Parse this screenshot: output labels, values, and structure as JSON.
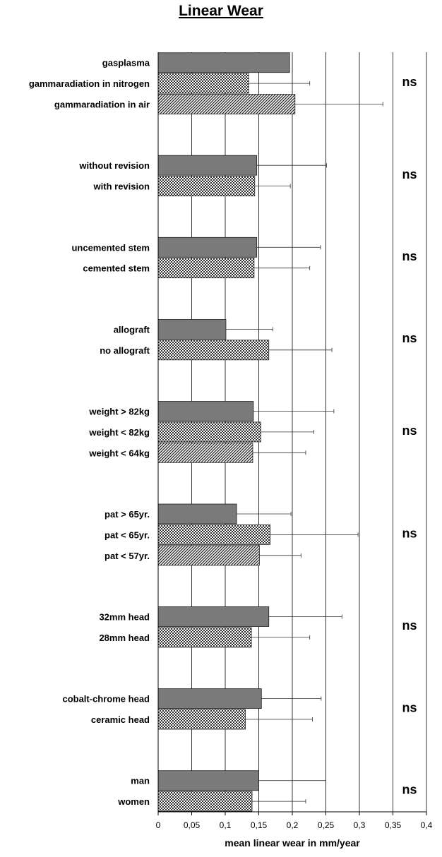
{
  "chart_data": {
    "type": "bar",
    "orientation": "horizontal",
    "title": "Linear Wear",
    "xlabel": "mean linear wear in mm/year",
    "ylabel": "",
    "xlim": [
      0,
      0.4
    ],
    "x_ticks": [
      "0",
      "0,05",
      "0,1",
      "0,15",
      "0,2",
      "0,25",
      "0,3",
      "0,35",
      "0,4"
    ],
    "x_tick_values": [
      0,
      0.05,
      0.1,
      0.15,
      0.2,
      0.25,
      0.3,
      0.35,
      0.4
    ],
    "grid": "vertical",
    "fill_patterns": {
      "solid": "#7a7a7a",
      "checker": "checker",
      "diagonal": "diagonal"
    },
    "groups": [
      {
        "significance": "ns",
        "bars": [
          {
            "label": "gasplasma",
            "value": 0.196,
            "error_high": 0.196,
            "fill": "solid"
          },
          {
            "label": "gammaradiation in nitrogen",
            "value": 0.135,
            "error_high": 0.226,
            "fill": "checker"
          },
          {
            "label": "gammaradiation in air",
            "value": 0.204,
            "error_high": 0.335,
            "fill": "diagonal"
          }
        ]
      },
      {
        "significance": "ns",
        "bars": [
          {
            "label": "without revision",
            "value": 0.147,
            "error_high": 0.251,
            "fill": "solid"
          },
          {
            "label": "with revision",
            "value": 0.144,
            "error_high": 0.197,
            "fill": "checker"
          }
        ]
      },
      {
        "significance": "ns",
        "bars": [
          {
            "label": "uncemented stem",
            "value": 0.147,
            "error_high": 0.242,
            "fill": "solid"
          },
          {
            "label": "cemented stem",
            "value": 0.143,
            "error_high": 0.226,
            "fill": "checker"
          }
        ]
      },
      {
        "significance": "ns",
        "bars": [
          {
            "label": "allograft",
            "value": 0.101,
            "error_high": 0.171,
            "fill": "solid"
          },
          {
            "label": "no allograft",
            "value": 0.165,
            "error_high": 0.259,
            "fill": "checker"
          }
        ]
      },
      {
        "significance": "ns",
        "bars": [
          {
            "label": "weight > 82kg",
            "value": 0.142,
            "error_high": 0.262,
            "fill": "solid"
          },
          {
            "label": "weight < 82kg",
            "value": 0.153,
            "error_high": 0.232,
            "fill": "checker"
          },
          {
            "label": "weight < 64kg",
            "value": 0.141,
            "error_high": 0.22,
            "fill": "diagonal"
          }
        ]
      },
      {
        "significance": "ns",
        "bars": [
          {
            "label": "pat > 65yr.",
            "value": 0.117,
            "error_high": 0.198,
            "fill": "solid"
          },
          {
            "label": "pat < 65yr.",
            "value": 0.167,
            "error_high": 0.298,
            "fill": "checker"
          },
          {
            "label": "pat < 57yr.",
            "value": 0.151,
            "error_high": 0.213,
            "fill": "diagonal"
          }
        ]
      },
      {
        "significance": "ns",
        "bars": [
          {
            "label": "32mm head",
            "value": 0.165,
            "error_high": 0.274,
            "fill": "solid"
          },
          {
            "label": "28mm head",
            "value": 0.139,
            "error_high": 0.226,
            "fill": "checker"
          }
        ]
      },
      {
        "significance": "ns",
        "bars": [
          {
            "label": "cobalt-chrome head",
            "value": 0.154,
            "error_high": 0.243,
            "fill": "solid"
          },
          {
            "label": "ceramic head",
            "value": 0.13,
            "error_high": 0.23,
            "fill": "checker"
          }
        ]
      },
      {
        "significance": "ns",
        "bars": [
          {
            "label": "man",
            "value": 0.15,
            "error_high": 0.25,
            "fill": "solid"
          },
          {
            "label": "women",
            "value": 0.14,
            "error_high": 0.22,
            "fill": "checker"
          }
        ]
      }
    ]
  }
}
